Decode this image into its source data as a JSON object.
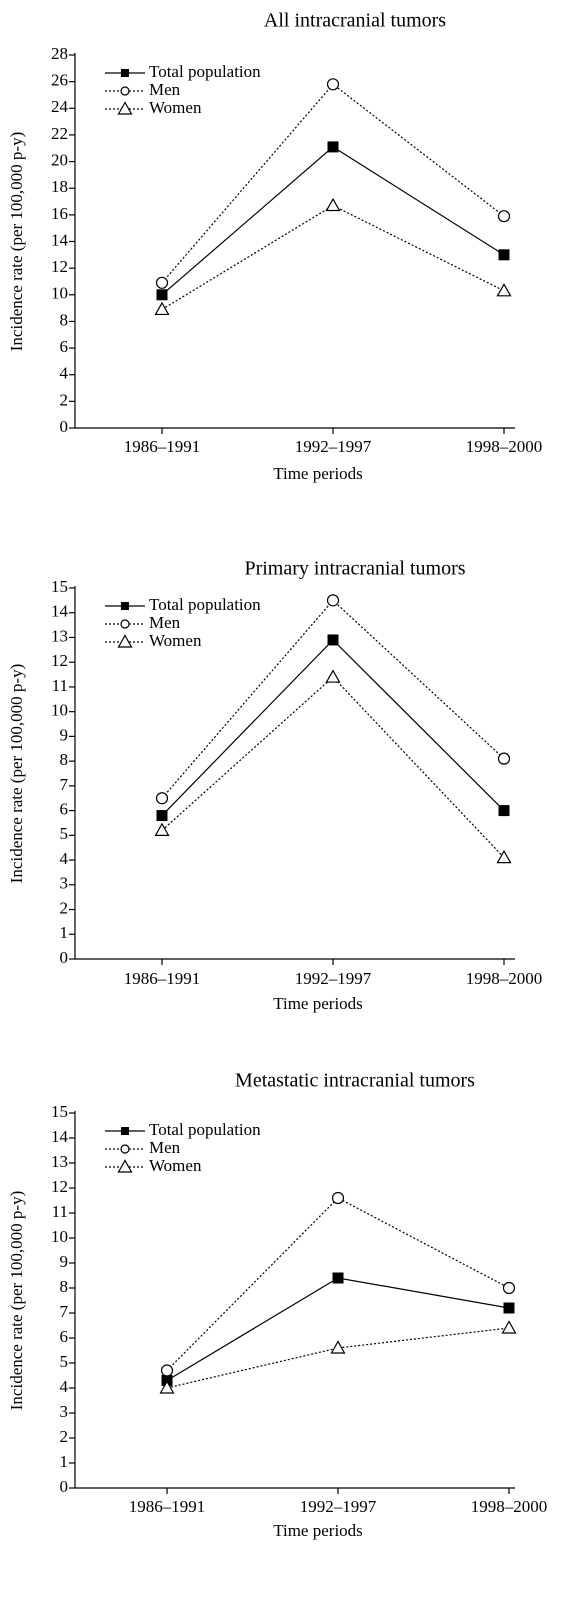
{
  "chart_data": [
    {
      "type": "line",
      "title": "All intracranial tumors",
      "xlabel": "Time periods",
      "ylabel": "Incidence rate (per 100,000 p-y)",
      "categories": [
        "1986–1991",
        "1992–1997",
        "1998–2000"
      ],
      "series": [
        {
          "name": "Total population",
          "color": "#000000",
          "marker": "square",
          "line_style": "solid",
          "values": [
            10.0,
            21.1,
            13.0
          ]
        },
        {
          "name": "Men",
          "color": "#000000",
          "marker": "circle",
          "line_style": "dotted",
          "values": [
            10.9,
            25.8,
            15.9
          ]
        },
        {
          "name": "Women",
          "color": "#000000",
          "marker": "triangle",
          "line_style": "dotted",
          "values": [
            8.9,
            16.7,
            10.3
          ]
        }
      ],
      "ylim": [
        0,
        28
      ],
      "yticks": [
        0,
        2,
        4,
        6,
        8,
        10,
        12,
        14,
        16,
        18,
        20,
        22,
        24,
        26,
        28
      ],
      "legend": "upper left"
    },
    {
      "type": "line",
      "title": "Primary intracranial tumors",
      "xlabel": "Time periods",
      "ylabel": "Incidence rate (per 100,000 p-y)",
      "categories": [
        "1986–1991",
        "1992–1997",
        "1998–2000"
      ],
      "series": [
        {
          "name": "Total population",
          "color": "#000000",
          "marker": "square",
          "line_style": "solid",
          "values": [
            5.8,
            12.9,
            6.0
          ]
        },
        {
          "name": "Men",
          "color": "#000000",
          "marker": "circle",
          "line_style": "dotted",
          "values": [
            6.5,
            14.5,
            8.1
          ]
        },
        {
          "name": "Women",
          "color": "#000000",
          "marker": "triangle",
          "line_style": "dotted",
          "values": [
            5.2,
            11.4,
            4.1
          ]
        }
      ],
      "ylim": [
        0,
        15
      ],
      "yticks": [
        0,
        1,
        2,
        3,
        4,
        5,
        6,
        7,
        8,
        9,
        10,
        11,
        12,
        13,
        14,
        15
      ],
      "legend": "upper left"
    },
    {
      "type": "line",
      "title": "Metastatic intracranial tumors",
      "xlabel": "Time periods",
      "ylabel": "Incidence rate (per 100,000 p-y)",
      "categories": [
        "1986–1991",
        "1992–1997",
        "1998–2000"
      ],
      "series": [
        {
          "name": "Total population",
          "color": "#000000",
          "marker": "square",
          "line_style": "solid",
          "values": [
            4.3,
            8.4,
            7.2
          ]
        },
        {
          "name": "Men",
          "color": "#000000",
          "marker": "circle",
          "line_style": "dotted",
          "values": [
            4.7,
            11.6,
            8.0
          ]
        },
        {
          "name": "Women",
          "color": "#000000",
          "marker": "triangle",
          "line_style": "dotted",
          "values": [
            4.0,
            5.6,
            6.4
          ]
        }
      ],
      "ylim": [
        0,
        15
      ],
      "yticks": [
        0,
        1,
        2,
        3,
        4,
        5,
        6,
        7,
        8,
        9,
        10,
        11,
        12,
        13,
        14,
        15
      ],
      "legend": "upper left"
    }
  ]
}
